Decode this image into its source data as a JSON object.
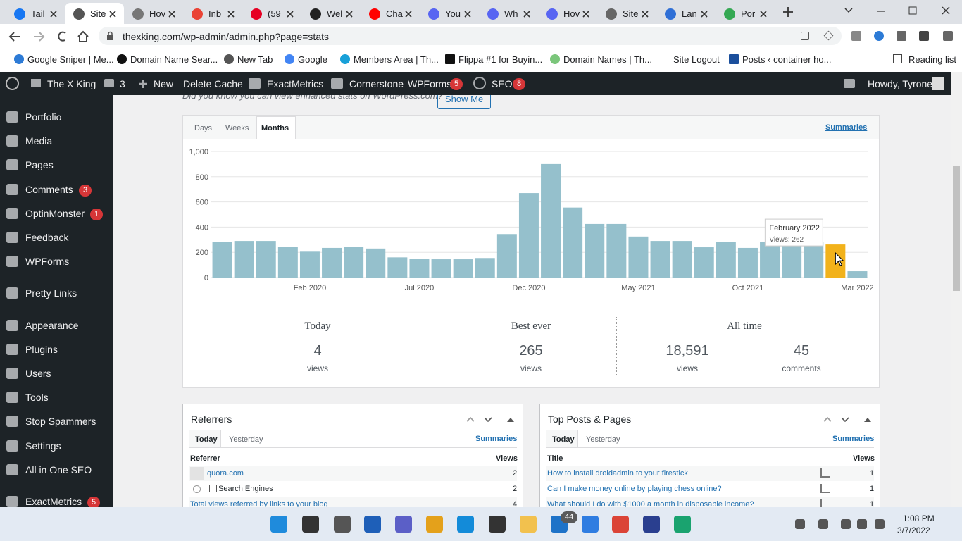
{
  "browser": {
    "tabs": [
      "Tail",
      "Site",
      "Hov",
      "Inb",
      "(59",
      "Wel",
      "Cha",
      "You",
      "Wh",
      "Hov",
      "Site",
      "Lan",
      "Por"
    ],
    "active_tab": 1,
    "url": "thexking.com/wp-admin/admin.php?page=stats",
    "bookmarks": [
      "Google Sniper | Me...",
      "Domain Name Sear...",
      "New Tab",
      "Google",
      "Members Area | Th...",
      "Flippa #1 for Buyin...",
      "Domain Names | Th...",
      "Site Logout",
      "Posts ‹ container ho..."
    ],
    "reading_list": "Reading list"
  },
  "admin_bar": {
    "site": "The X King",
    "comments": "3",
    "new": "New",
    "items": [
      "Delete Cache",
      "ExactMetrics",
      "Cornerstone"
    ],
    "wpforms": {
      "label": "WPForms",
      "badge": "5"
    },
    "seo": {
      "label": "SEO",
      "badge": "8"
    },
    "howdy": "Howdy, Tyrone"
  },
  "sidebar": [
    {
      "label": "Portfolio"
    },
    {
      "label": "Media"
    },
    {
      "label": "Pages"
    },
    {
      "label": "Comments",
      "badge": "3"
    },
    {
      "label": "OptinMonster",
      "badge": "1"
    },
    {
      "label": "Feedback"
    },
    {
      "label": "WPForms"
    },
    {
      "label": "Pretty Links"
    },
    {
      "label": "Appearance"
    },
    {
      "label": "Plugins"
    },
    {
      "label": "Users"
    },
    {
      "label": "Tools"
    },
    {
      "label": "Stop Spammers"
    },
    {
      "label": "Settings"
    },
    {
      "label": "All in One SEO"
    },
    {
      "label": "ExactMetrics",
      "badge": "5"
    }
  ],
  "notice": {
    "text": "Did you know you can view enhanced stats on WordPress.com?",
    "button": "Show Me"
  },
  "stats": {
    "tabs": [
      "Days",
      "Weeks",
      "Months"
    ],
    "active_tab": 2,
    "summaries": "Summaries"
  },
  "chart_data": {
    "type": "bar",
    "categories": [
      null,
      null,
      null,
      null,
      "Feb 2020",
      null,
      null,
      null,
      null,
      "Jul 2020",
      null,
      null,
      null,
      null,
      "Dec 2020",
      null,
      null,
      null,
      null,
      "May 2021",
      null,
      null,
      null,
      null,
      "Oct 2021",
      null,
      null,
      null,
      null,
      "Mar 2022"
    ],
    "values": [
      280,
      290,
      290,
      245,
      205,
      235,
      245,
      230,
      160,
      150,
      145,
      145,
      155,
      345,
      670,
      900,
      555,
      425,
      425,
      325,
      290,
      290,
      240,
      280,
      235,
      285,
      280,
      280,
      262,
      50
    ],
    "color": "#95c0cc",
    "highlighted_bar": 28,
    "highlight_color": "#f2b21b",
    "tooltip": {
      "title": "February 2022",
      "text": "Views: 262"
    },
    "ylim": [
      0,
      1000
    ],
    "yticks": [
      0,
      200,
      400,
      600,
      800,
      {
        "value": 1000,
        "label": "1,000"
      }
    ],
    "grid": true
  },
  "summary": [
    {
      "title": "Today",
      "items": [
        {
          "value": "4",
          "unit": "views"
        }
      ]
    },
    {
      "title": "Best ever",
      "items": [
        {
          "value": "265",
          "unit": "views"
        }
      ]
    },
    {
      "title": "All time",
      "items": [
        {
          "value": "18,591",
          "unit": "views"
        },
        {
          "value": "45",
          "unit": "comments"
        }
      ]
    }
  ],
  "panels": [
    {
      "title": "Referrers",
      "tabs": [
        "Today",
        "Yesterday"
      ],
      "summaries": "Summaries",
      "columns": [
        "Referrer",
        "Views"
      ],
      "rows": [
        [
          "quora.com",
          "2"
        ],
        [
          "Search Engines",
          "2"
        ],
        [
          "Total views referred by links to your blog",
          "4"
        ]
      ]
    },
    {
      "title": "Top Posts & Pages",
      "tabs": [
        "Today",
        "Yesterday"
      ],
      "summaries": "Summaries",
      "columns": [
        "Title",
        "Views"
      ],
      "rows": [
        [
          "How to install droidadmin to your firestick",
          "1"
        ],
        [
          "Can I make money online by playing chess online?",
          "1"
        ],
        [
          "What should I do with $1000 a month in disposable income?",
          "1"
        ]
      ]
    }
  ],
  "taskbar": {
    "badge": "44",
    "time": "1:08 PM",
    "date": "3/7/2022"
  }
}
